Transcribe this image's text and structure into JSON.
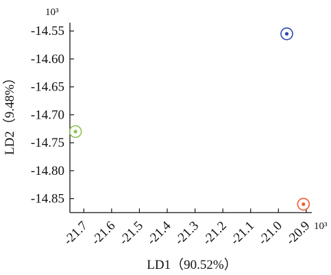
{
  "chart_data": {
    "type": "scatter",
    "title": "",
    "xlabel": "LD1（90.52%）",
    "ylabel": "LD2（9.48%）",
    "x_multiplier_label": "10³",
    "y_multiplier_label": "10³",
    "xlim": [
      -21.75,
      -20.88
    ],
    "ylim": [
      -14.875,
      -14.535
    ],
    "x_ticks": [
      -21.7,
      -21.6,
      -21.5,
      -21.4,
      -21.3,
      -21.2,
      -21.1,
      -21.0,
      -20.9
    ],
    "x_tick_labels": [
      "-21.7",
      "-21.6",
      "-21.5",
      "-21.4",
      "-21.3",
      "-21.2",
      "-21.1",
      "-21.0",
      "-20.9"
    ],
    "y_ticks": [
      -14.55,
      -14.6,
      -14.65,
      -14.7,
      -14.75,
      -14.8,
      -14.85
    ],
    "y_tick_labels": [
      "-14.55",
      "-14.60",
      "-14.65",
      "-14.70",
      "-14.75",
      "-14.80",
      "-14.85"
    ],
    "grid": false,
    "legend": "none",
    "points": [
      {
        "x": -21.73,
        "y": -14.73,
        "color": "#8cc152",
        "marker": "dot-in-ring"
      },
      {
        "x": -20.97,
        "y": -14.555,
        "color": "#2a48b0",
        "marker": "dot-in-ring"
      },
      {
        "x": -20.91,
        "y": -14.86,
        "color": "#f2592f",
        "marker": "dot-in-ring"
      }
    ]
  }
}
